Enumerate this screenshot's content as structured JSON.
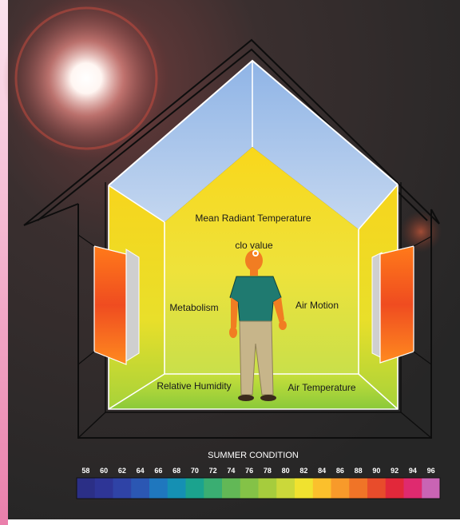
{
  "labels": {
    "mean_radiant_temperature": "Mean Radiant Temperature",
    "clo_value": "clo value",
    "metabolism": "Metabolism",
    "air_motion": "Air Motion",
    "relative_humidity": "Relative Humidity",
    "air_temperature": "Air Temperature"
  },
  "legend": {
    "title": "SUMMER CONDITION",
    "ticks": [
      "58",
      "60",
      "62",
      "64",
      "66",
      "68",
      "70",
      "72",
      "74",
      "76",
      "78",
      "80",
      "82",
      "84",
      "86",
      "88",
      "90",
      "92",
      "94",
      "96"
    ],
    "colors": [
      "#2b2f86",
      "#2e3596",
      "#2f43a6",
      "#2b57b3",
      "#1f77be",
      "#1590b3",
      "#1ba38e",
      "#3aae72",
      "#62b856",
      "#84c247",
      "#a6cc3d",
      "#cbd83a",
      "#f0e22f",
      "#fbc02c",
      "#f89a2a",
      "#f07427",
      "#e84c2b",
      "#e2283a",
      "#df2a6f",
      "#c964b4"
    ]
  },
  "colors": {
    "background": "#2b2b2b",
    "ceiling": "#a9c6ea",
    "wall_yellow": "#f6d31f",
    "floor_green": "#9fd23a",
    "window_hot": "#ef5a24",
    "sidebar_pink": "#f3a9c7"
  }
}
